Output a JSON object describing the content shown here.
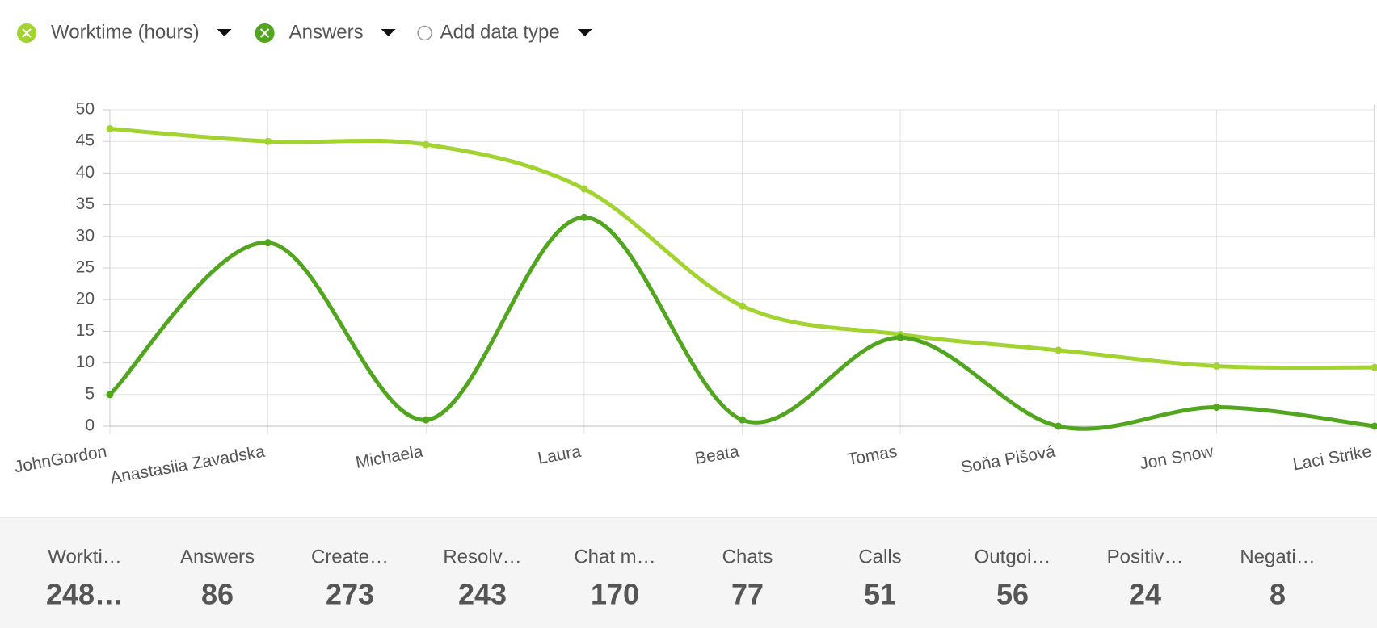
{
  "chart_data": {
    "type": "line",
    "categories": [
      "JohnGordon",
      "Anastasiia Zavadska",
      "Michaela",
      "Laura",
      "Beata",
      "Tomas",
      "Soňa Pišová",
      "Jon Snow",
      "Laci Strike"
    ],
    "series": [
      {
        "name": "Worktime (hours)",
        "color": "#a3d330",
        "values": [
          47,
          45,
          44.5,
          37.5,
          19,
          14.5,
          12,
          9.5,
          9.3
        ]
      },
      {
        "name": "Answers",
        "color": "#52a61f",
        "values": [
          5,
          29,
          1,
          33,
          1,
          14,
          0,
          3,
          0
        ]
      }
    ],
    "ylim": [
      0,
      50
    ],
    "yticks": [
      0,
      5,
      10,
      15,
      20,
      25,
      30,
      35,
      40,
      45,
      50
    ],
    "grid": true
  },
  "controls": {
    "add_data_type": "Add data type"
  },
  "stats": [
    {
      "label": "Workti…",
      "value": "248…"
    },
    {
      "label": "Answers",
      "value": 86
    },
    {
      "label": "Create…",
      "value": 273
    },
    {
      "label": "Resolv…",
      "value": 243
    },
    {
      "label": "Chat m…",
      "value": 170
    },
    {
      "label": "Chats",
      "value": 77
    },
    {
      "label": "Calls",
      "value": 51
    },
    {
      "label": "Outgoi…",
      "value": 56
    },
    {
      "label": "Positiv…",
      "value": 24
    },
    {
      "label": "Negati…",
      "value": 8
    }
  ]
}
